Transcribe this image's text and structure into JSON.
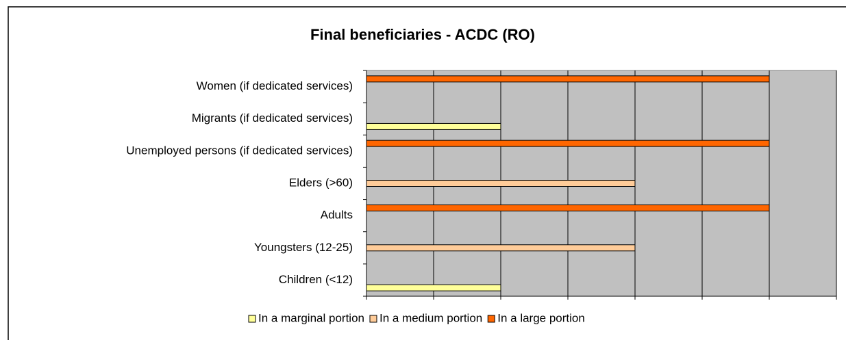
{
  "chart_data": {
    "type": "bar",
    "orientation": "horizontal",
    "title": "Final beneficiaries - ACDC (RO)",
    "categories": [
      "Children (<12)",
      "Youngsters (12-25)",
      "Adults",
      "Elders (>60)",
      "Unemployed persons (if dedicated services)",
      "Migrants (if dedicated services)",
      "Women (if dedicated services)"
    ],
    "series": [
      {
        "name": "In a marginal portion",
        "color": "#ffff99",
        "values": [
          2,
          0,
          0,
          0,
          0,
          2,
          0
        ]
      },
      {
        "name": "In a medium portion",
        "color": "#ffcc99",
        "values": [
          0,
          4,
          0,
          4,
          0,
          0,
          0
        ]
      },
      {
        "name": "In a large portion",
        "color": "#ff6600",
        "values": [
          0,
          0,
          6,
          0,
          6,
          0,
          6
        ]
      }
    ],
    "xlim": [
      0,
      7
    ],
    "xticks": [
      0,
      1,
      2,
      3,
      4,
      5,
      6,
      7
    ],
    "grid": true,
    "legend": "bottom",
    "plot_background": "#c0c0c0"
  }
}
